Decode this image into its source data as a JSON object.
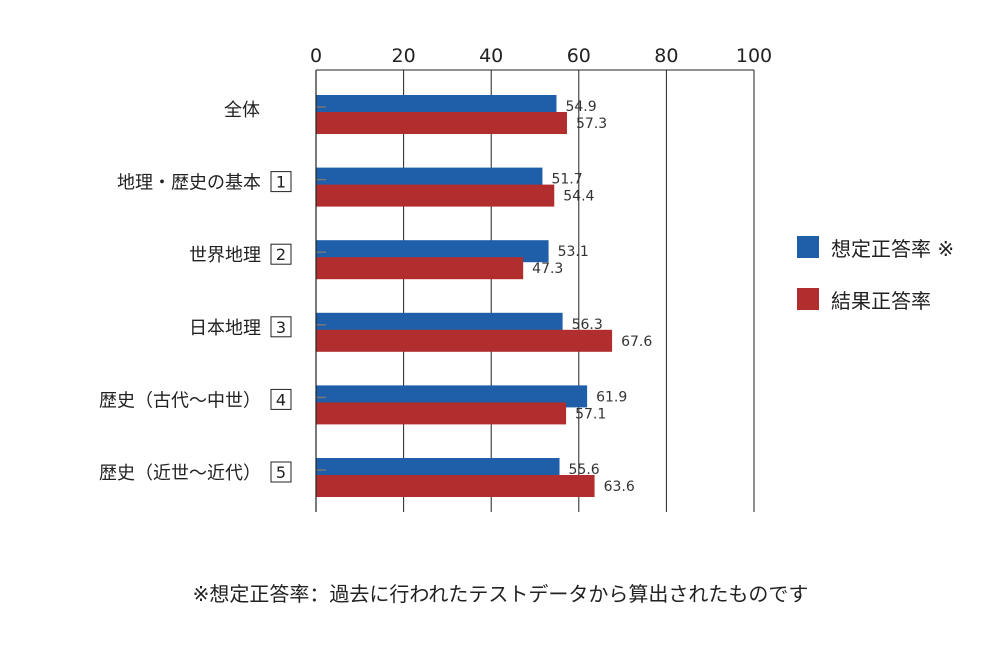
{
  "chart_data": {
    "type": "bar",
    "orientation": "horizontal",
    "categories": [
      {
        "label": "全体",
        "number": ""
      },
      {
        "label": "地理・歴史の基本",
        "number": "1"
      },
      {
        "label": "世界地理",
        "number": "2"
      },
      {
        "label": "日本地理",
        "number": "3"
      },
      {
        "label": "歴史（古代～中世）",
        "number": "4"
      },
      {
        "label": "歴史（近世～近代）",
        "number": "5"
      }
    ],
    "series": [
      {
        "name": "想定正答率 ※",
        "color": "#1f5ea8",
        "values": [
          54.9,
          51.7,
          53.1,
          56.3,
          61.9,
          55.6
        ]
      },
      {
        "name": "結果正答率",
        "color": "#b22d2e",
        "values": [
          57.3,
          54.4,
          47.3,
          67.6,
          57.1,
          63.6
        ]
      }
    ],
    "xlim": [
      0,
      100
    ],
    "x_ticks": [
      "0",
      "20",
      "40",
      "60",
      "80",
      "100"
    ],
    "grid": true,
    "legend_position": "right",
    "footnote": "※想定正答率：過去に行われたテストデータから算出されたものです"
  }
}
